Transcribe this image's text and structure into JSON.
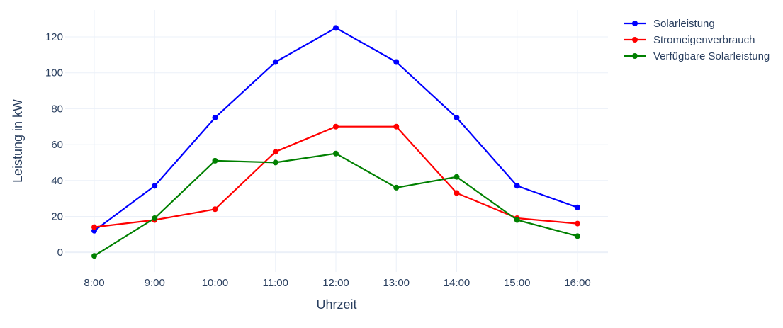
{
  "chart_data": {
    "type": "line",
    "title": "",
    "xlabel": "Uhrzeit",
    "ylabel": "Leistung in kW",
    "categories": [
      "8:00",
      "9:00",
      "10:00",
      "11:00",
      "12:00",
      "13:00",
      "14:00",
      "15:00",
      "16:00"
    ],
    "ylim": [
      -11,
      135
    ],
    "yticks": [
      0,
      20,
      40,
      60,
      80,
      100,
      120
    ],
    "grid": true,
    "legend_position": "top-right",
    "series": [
      {
        "name": "Solarleistung",
        "color": "#0000ff",
        "values": [
          12,
          37,
          75,
          106,
          125,
          106,
          75,
          37,
          25
        ]
      },
      {
        "name": "Stromeigenverbrauch",
        "color": "#ff0000",
        "values": [
          14,
          18,
          24,
          56,
          70,
          70,
          33,
          19,
          16
        ]
      },
      {
        "name": "Verfügbare Solarleistung",
        "color": "#008000",
        "values": [
          -2,
          19,
          51,
          50,
          55,
          36,
          42,
          18,
          9
        ]
      }
    ]
  }
}
